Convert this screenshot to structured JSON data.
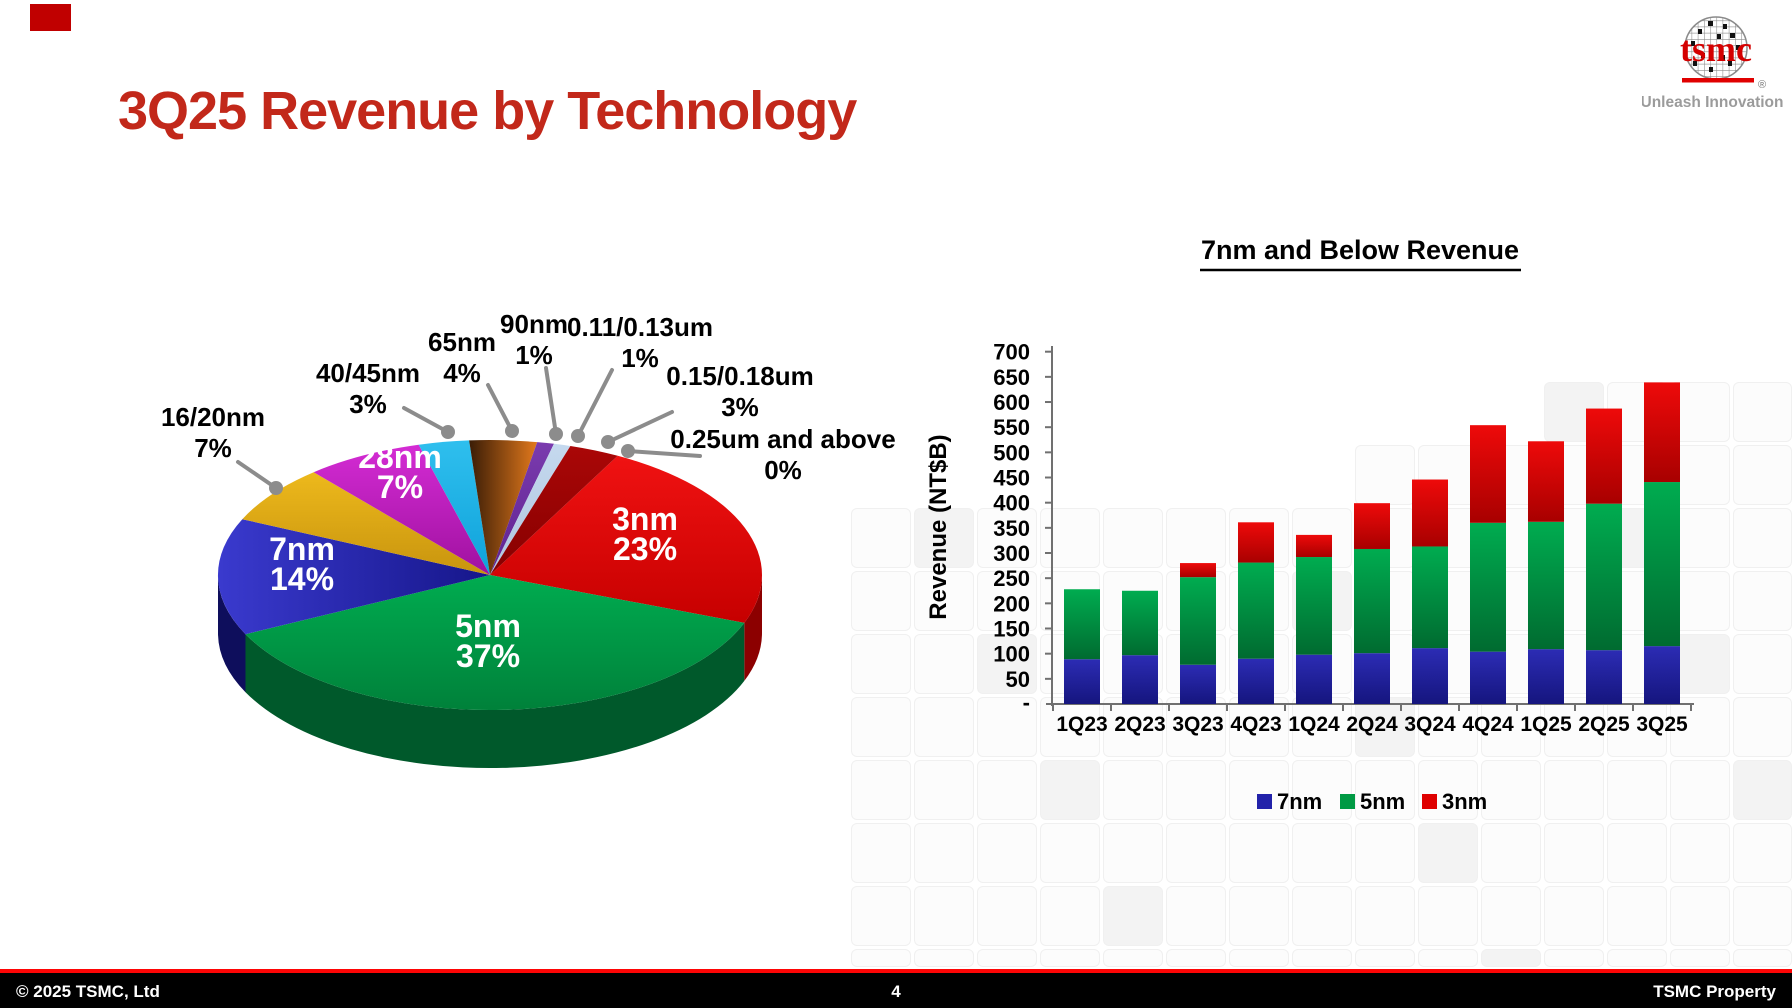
{
  "header": {
    "title": "3Q25 Revenue by Technology"
  },
  "logo": {
    "brand": "tsmc",
    "registered": "®",
    "tagline": "Unleash Innovation"
  },
  "footer": {
    "copyright": "© 2025 TSMC, Ltd",
    "page_number": "4",
    "property": "TSMC Property"
  },
  "chart_data": [
    {
      "type": "pie",
      "style": "3d",
      "unit": "%",
      "direction": "clockwise",
      "start_angle_deg": 62,
      "slices": [
        {
          "label": "3nm",
          "value": 23,
          "label_position": "inside",
          "color": "#F01212",
          "color2": "#C60000",
          "side_color": "#8C0000",
          "gdir": "v"
        },
        {
          "label": "5nm",
          "value": 37,
          "label_position": "inside",
          "color": "#00AC50",
          "color2": "#00813A",
          "side_color": "#00592B",
          "gdir": "v"
        },
        {
          "label": "7nm",
          "value": 14,
          "label_position": "inside",
          "color": "#3A3ACE",
          "color2": "#16168A",
          "side_color": "#0E0E5C",
          "gdir": "h"
        },
        {
          "label": "16/20nm",
          "value": 7,
          "label_position": "outside",
          "color": "#EDB91C",
          "color2": "#C8940E",
          "gdir": "v"
        },
        {
          "label": "28nm",
          "value": 7,
          "label_position": "inside",
          "color": "#D42CD4",
          "color2": "#A011A0",
          "gdir": "v"
        },
        {
          "label": "40/45nm",
          "value": 3,
          "label_position": "outside",
          "color": "#2FBFEE",
          "color2": "#0FA2DA",
          "gdir": "v"
        },
        {
          "label": "65nm",
          "value": 4,
          "label_position": "outside",
          "color": "#3A1C06",
          "color2": "#E2791C",
          "gdir": "h"
        },
        {
          "label": "90nm",
          "value": 1,
          "label_position": "outside",
          "color": "#7A3BAE",
          "color2": "#5F2390",
          "gdir": "v"
        },
        {
          "label": "0.11/0.13um",
          "value": 1,
          "label_position": "outside",
          "color": "#C5D9EE",
          "color2": "#AFC6E0",
          "gdir": "v"
        },
        {
          "label": "0.15/0.18um",
          "value": 3,
          "label_position": "outside",
          "color": "#AA0707",
          "color2": "#860000",
          "gdir": "v"
        },
        {
          "label": "0.25um and above",
          "value": 0,
          "label_position": "outside",
          "color": "#888888",
          "color2": "#888888",
          "gdir": "v"
        }
      ]
    },
    {
      "type": "bar",
      "stacked": true,
      "title": "7nm and Below Revenue",
      "ylabel": "Revenue (NT$B)",
      "ylim": [
        0,
        700
      ],
      "ytick_step": 50,
      "zero_tick_label": "-",
      "legend_position": "bottom",
      "grid": false,
      "categories": [
        "1Q23",
        "2Q23",
        "3Q23",
        "4Q23",
        "1Q24",
        "2Q24",
        "3Q24",
        "4Q24",
        "1Q25",
        "2Q25",
        "3Q25"
      ],
      "series": [
        {
          "name": "7nm",
          "color": "#2C2CB4",
          "color2": "#15157E",
          "legend_color": "#2222AA",
          "values": [
            89,
            97,
            78,
            90,
            98,
            101,
            111,
            104,
            109,
            107,
            115
          ]
        },
        {
          "name": "5nm",
          "color": "#00AC50",
          "color2": "#006B30",
          "legend_color": "#009A44",
          "values": [
            139,
            128,
            174,
            191,
            194,
            207,
            202,
            256,
            253,
            291,
            326
          ]
        },
        {
          "name": "3nm",
          "color": "#EE0A0A",
          "color2": "#A80000",
          "legend_color": "#DF0000",
          "values": [
            0,
            0,
            28,
            80,
            44,
            91,
            133,
            194,
            160,
            189,
            198
          ]
        }
      ]
    }
  ]
}
